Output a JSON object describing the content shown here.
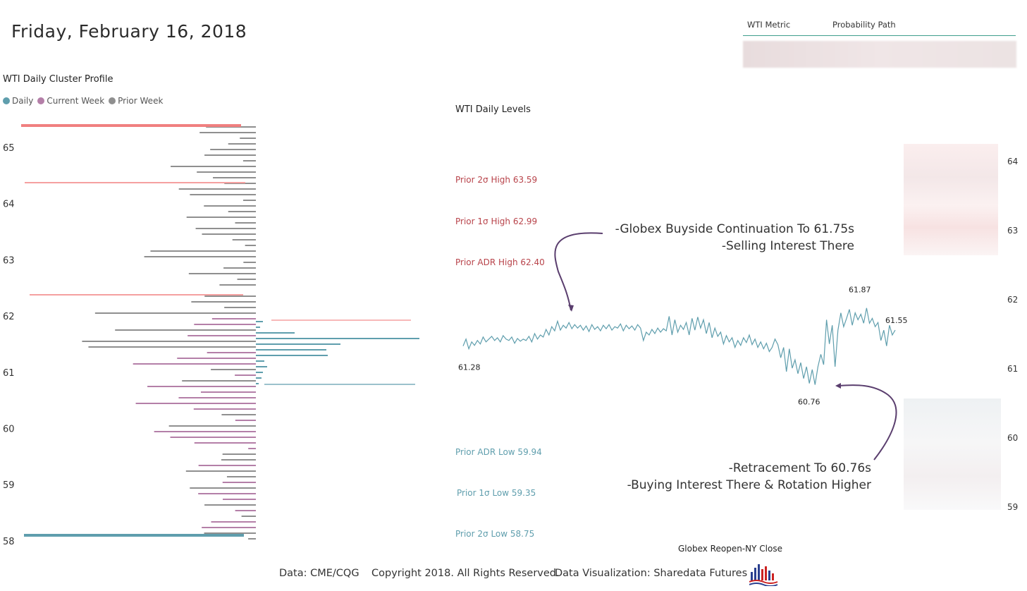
{
  "header": {
    "date": "Friday, February 16, 2018"
  },
  "metric_table": {
    "col1": "WTI Metric",
    "col2": "Probability Path"
  },
  "profile": {
    "title": "WTI Daily Cluster Profile",
    "legend": [
      {
        "label": "Daily",
        "color": "#5f9ead"
      },
      {
        "label": "Current Week",
        "color": "#b47fa8"
      },
      {
        "label": "Prior Week",
        "color": "#8f8f8f"
      }
    ],
    "y_ticks": [
      "65",
      "64",
      "63",
      "62",
      "61",
      "60",
      "59",
      "58"
    ]
  },
  "levels": {
    "title": "WTI Daily Levels",
    "items": [
      {
        "label": "Prior 2σ High 63.59",
        "kind": "high"
      },
      {
        "label": "Prior 1σ High 62.99",
        "kind": "high"
      },
      {
        "label": "Prior ADR High 62.40",
        "kind": "high"
      },
      {
        "label": "Prior ADR Low 59.94",
        "kind": "low"
      },
      {
        "label": "Prior 1σ Low 59.35",
        "kind": "low"
      },
      {
        "label": "Prior 2σ Low 58.75",
        "kind": "low"
      }
    ],
    "high_color": "#b8434a",
    "low_color": "#5f9ead"
  },
  "annotations": {
    "top_line1": "-Globex Buyside Continuation To 61.75s",
    "top_line2": "-Selling Interest There",
    "bottom_line1": "-Retracement To 60.76s",
    "bottom_line2": "-Buying Interest There & Rotation Higher",
    "arrow_color": "#5a3e6e"
  },
  "chart_data": {
    "type": "line",
    "title": "WTI Daily Levels",
    "xlabel": "Globex Reopen-NY Close",
    "ylabel": "",
    "right_axis_ticks": [
      "64",
      "63",
      "62",
      "61",
      "60",
      "59"
    ],
    "ylim": [
      58.9,
      64.2
    ],
    "point_labels": [
      {
        "text": "61.28",
        "value": 61.28
      },
      {
        "text": "60.76",
        "value": 60.76
      },
      {
        "text": "61.87",
        "value": 61.87
      },
      {
        "text": "61.55",
        "value": 61.55
      }
    ],
    "series": [
      {
        "name": "WTI",
        "color": "#5f9ead",
        "values": [
          61.32,
          61.42,
          61.28,
          61.38,
          61.33,
          61.4,
          61.35,
          61.45,
          61.38,
          61.42,
          61.46,
          61.4,
          61.44,
          61.38,
          61.47,
          61.42,
          61.4,
          61.45,
          61.36,
          61.43,
          61.39,
          61.42,
          61.4,
          61.46,
          61.38,
          61.5,
          61.42,
          61.48,
          61.45,
          61.56,
          61.48,
          61.6,
          61.54,
          61.68,
          61.55,
          61.62,
          61.58,
          61.66,
          61.57,
          61.63,
          61.58,
          61.62,
          61.55,
          61.61,
          61.53,
          61.63,
          61.56,
          61.6,
          61.54,
          61.62,
          61.57,
          61.63,
          61.55,
          61.6,
          61.58,
          61.64,
          61.54,
          61.62,
          61.57,
          61.61,
          61.55,
          61.63,
          61.58,
          61.4,
          61.52,
          61.48,
          61.56,
          61.5,
          61.58,
          61.52,
          61.57,
          61.54,
          61.75,
          61.48,
          61.7,
          61.52,
          61.62,
          61.56,
          61.66,
          61.48,
          61.72,
          61.55,
          61.74,
          61.58,
          61.7,
          61.5,
          61.66,
          61.44,
          61.58,
          61.46,
          61.52,
          61.35,
          61.47,
          61.38,
          61.44,
          61.3,
          61.4,
          61.33,
          61.44,
          61.37,
          61.48,
          61.34,
          61.42,
          61.3,
          61.38,
          61.28,
          61.36,
          61.24,
          61.3,
          61.42,
          61.34,
          61.15,
          61.3,
          60.95,
          61.28,
          61.0,
          61.12,
          60.92,
          61.08,
          60.85,
          61.02,
          60.78,
          60.98,
          60.76,
          61.02,
          61.2,
          61.05,
          61.7,
          61.35,
          61.62,
          61.02,
          61.55,
          61.8,
          61.6,
          61.72,
          61.85,
          61.62,
          61.8,
          61.7,
          61.78,
          61.65,
          61.87,
          61.65,
          61.72,
          61.6,
          61.66,
          61.4,
          61.55,
          61.32,
          61.62,
          61.48,
          61.55
        ]
      }
    ]
  }
}
